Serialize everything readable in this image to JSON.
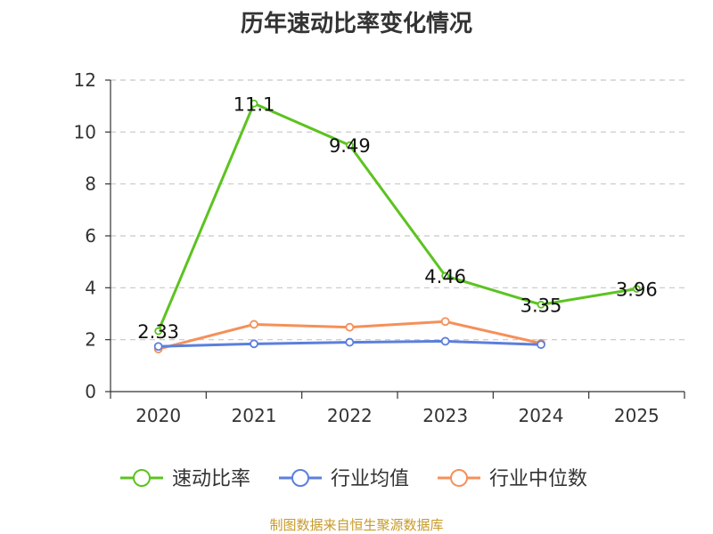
{
  "chart_data": {
    "type": "line",
    "title": "历年速动比率变化情况",
    "xlabel": "",
    "ylabel": "",
    "categories": [
      "2020",
      "2021",
      "2022",
      "2023",
      "2024",
      "2025"
    ],
    "ylim": [
      0,
      12
    ],
    "yticks": [
      0,
      2,
      4,
      6,
      8,
      10,
      12
    ],
    "grid": true,
    "legend_position": "bottom",
    "series": [
      {
        "name": "速动比率",
        "color": "#5cc320",
        "values": [
          2.33,
          11.1,
          9.49,
          4.46,
          3.35,
          3.96
        ],
        "labels": [
          "2.33",
          "11.1",
          "9.49",
          "4.46",
          "3.35",
          "3.96"
        ],
        "show_labels": true
      },
      {
        "name": "行业均值",
        "color": "#5b7fde",
        "values": [
          1.74,
          1.84,
          1.9,
          1.94,
          1.81,
          null
        ],
        "show_labels": false
      },
      {
        "name": "行业中位数",
        "color": "#f5905a",
        "values": [
          1.64,
          2.59,
          2.48,
          2.7,
          1.86,
          null
        ],
        "show_labels": false
      }
    ]
  },
  "footer": {
    "source": "制图数据来自恒生聚源数据库"
  }
}
